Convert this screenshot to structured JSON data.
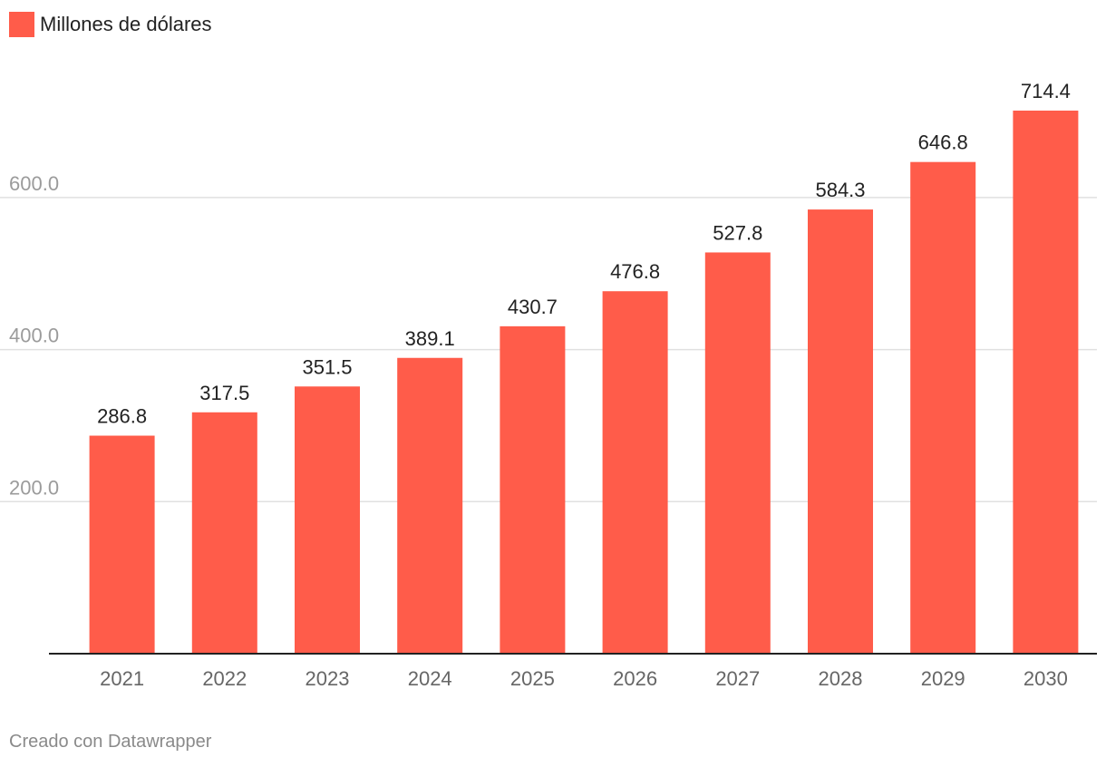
{
  "legend": {
    "label": "Millones de dólares",
    "color": "#ff5c4a"
  },
  "credit": "Creado con Datawrapper",
  "chart_data": {
    "type": "bar",
    "categories": [
      "2021",
      "2022",
      "2023",
      "2024",
      "2025",
      "2026",
      "2027",
      "2028",
      "2029",
      "2030"
    ],
    "series": [
      {
        "name": "Millones de dólares",
        "values": [
          286.8,
          317.5,
          351.5,
          389.1,
          430.7,
          476.8,
          527.8,
          584.3,
          646.8,
          714.4
        ]
      }
    ],
    "value_labels": [
      "286.8",
      "317.5",
      "351.5",
      "389.1",
      "430.7",
      "476.8",
      "527.8",
      "584.3",
      "646.8",
      "714.4"
    ],
    "y_ticks": [
      200,
      400,
      600
    ],
    "y_tick_labels": [
      "200.0",
      "400.0",
      "600.0"
    ],
    "ylim": [
      0,
      714.4
    ],
    "grid": true,
    "legend_position": "top-left",
    "bar_color": "#ff5c4a",
    "grid_color": "#e0e0e0",
    "axis_color": "#222222"
  }
}
